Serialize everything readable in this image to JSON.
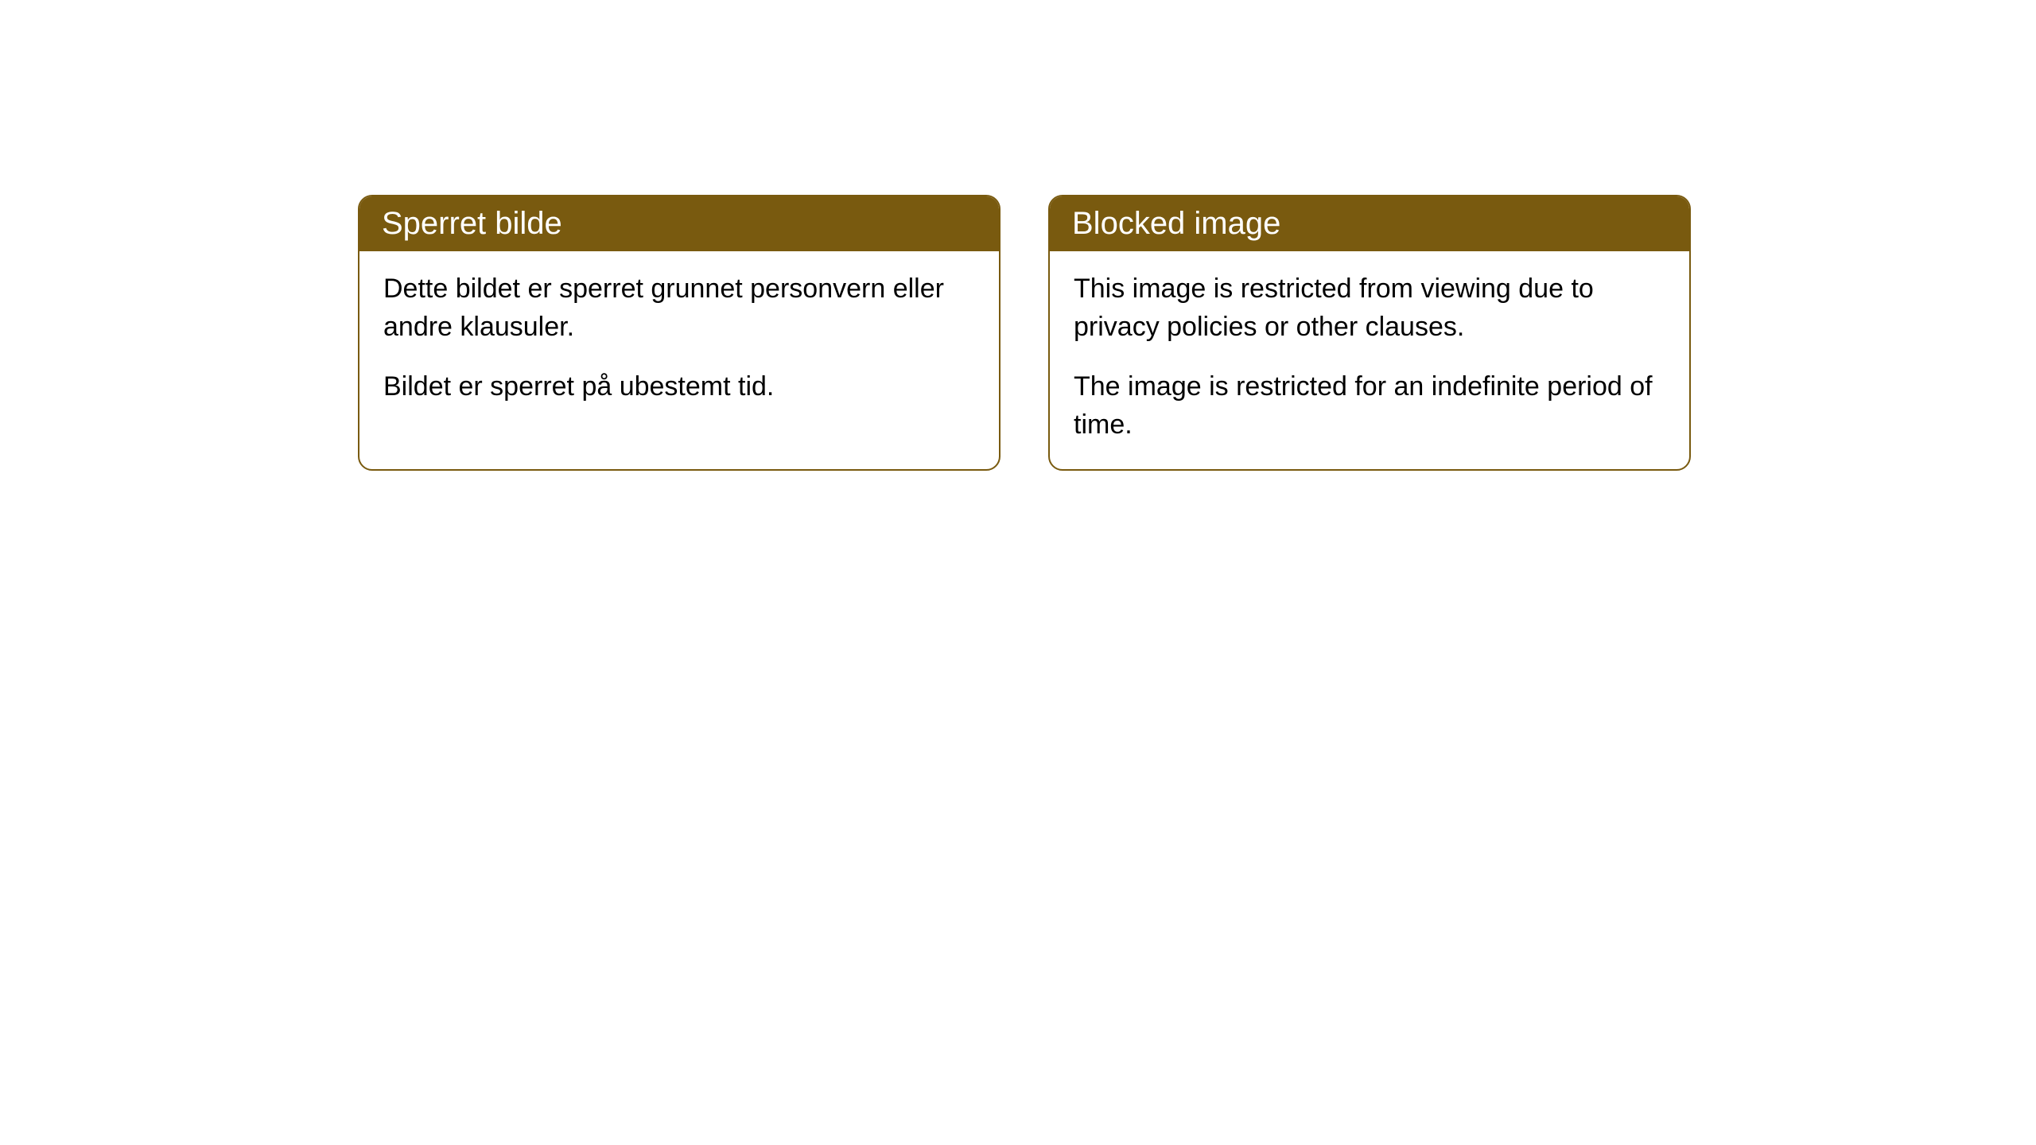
{
  "cards": [
    {
      "title": "Sperret bilde",
      "paragraph1": "Dette bildet er sperret grunnet personvern eller andre klausuler.",
      "paragraph2": "Bildet er sperret på ubestemt tid."
    },
    {
      "title": "Blocked image",
      "paragraph1": "This image is restricted from viewing due to privacy policies or other clauses.",
      "paragraph2": "The image is restricted for an indefinite period of time."
    }
  ],
  "styling": {
    "header_bg_color": "#795a0f",
    "header_text_color": "#ffffff",
    "border_color": "#795a0f",
    "body_bg_color": "#ffffff",
    "body_text_color": "#000000",
    "border_radius": 18,
    "header_fontsize": 40,
    "body_fontsize": 34
  }
}
